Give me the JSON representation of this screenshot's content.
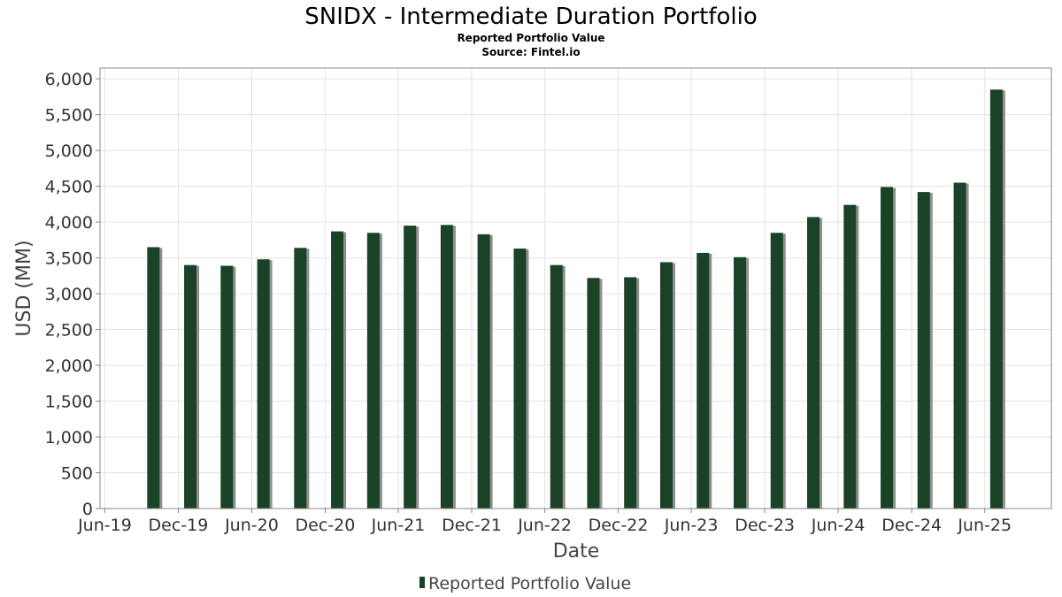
{
  "chart_data": {
    "type": "bar",
    "title": "SNIDX - Intermediate Duration Portfolio",
    "subtitle": "Reported Portfolio Value",
    "source": "Source: Fintel.io",
    "xlabel": "Date",
    "ylabel": "USD (MM)",
    "ylim": [
      0,
      6150
    ],
    "yticks": [
      0,
      500,
      1000,
      1500,
      2000,
      2500,
      3000,
      3500,
      4000,
      4500,
      5000,
      5500,
      6000
    ],
    "ytick_labels": [
      "0",
      "500",
      "1,000",
      "1,500",
      "2,000",
      "2,500",
      "3,000",
      "3,500",
      "4,000",
      "4,500",
      "5,000",
      "5,500",
      "6,000"
    ],
    "xlim": [
      "2019-05-20",
      "2025-11-14"
    ],
    "xticks": [
      {
        "date": "2019-06-01",
        "label": "Jun-19"
      },
      {
        "date": "2019-12-01",
        "label": "Dec-19"
      },
      {
        "date": "2020-06-01",
        "label": "Jun-20"
      },
      {
        "date": "2020-12-01",
        "label": "Dec-20"
      },
      {
        "date": "2021-06-01",
        "label": "Jun-21"
      },
      {
        "date": "2021-12-01",
        "label": "Dec-21"
      },
      {
        "date": "2022-06-01",
        "label": "Jun-22"
      },
      {
        "date": "2022-12-01",
        "label": "Dec-22"
      },
      {
        "date": "2023-06-01",
        "label": "Jun-23"
      },
      {
        "date": "2023-12-01",
        "label": "Dec-23"
      },
      {
        "date": "2024-06-01",
        "label": "Jun-24"
      },
      {
        "date": "2024-12-01",
        "label": "Dec-24"
      },
      {
        "date": "2025-06-01",
        "label": "Jun-25"
      }
    ],
    "grid": true,
    "legend_position": "bottom-center",
    "series": [
      {
        "name": "Reported Portfolio Value",
        "color": "#1a4226",
        "points": [
          {
            "date": "2019-09-30",
            "value": 3650
          },
          {
            "date": "2019-12-31",
            "value": 3400
          },
          {
            "date": "2020-03-31",
            "value": 3390
          },
          {
            "date": "2020-06-30",
            "value": 3480
          },
          {
            "date": "2020-09-30",
            "value": 3640
          },
          {
            "date": "2020-12-31",
            "value": 3870
          },
          {
            "date": "2021-03-31",
            "value": 3850
          },
          {
            "date": "2021-06-30",
            "value": 3950
          },
          {
            "date": "2021-09-30",
            "value": 3960
          },
          {
            "date": "2021-12-31",
            "value": 3830
          },
          {
            "date": "2022-03-31",
            "value": 3630
          },
          {
            "date": "2022-06-30",
            "value": 3400
          },
          {
            "date": "2022-09-30",
            "value": 3220
          },
          {
            "date": "2022-12-31",
            "value": 3230
          },
          {
            "date": "2023-03-31",
            "value": 3440
          },
          {
            "date": "2023-06-30",
            "value": 3570
          },
          {
            "date": "2023-09-30",
            "value": 3510
          },
          {
            "date": "2023-12-31",
            "value": 3850
          },
          {
            "date": "2024-03-31",
            "value": 4070
          },
          {
            "date": "2024-06-30",
            "value": 4240
          },
          {
            "date": "2024-09-30",
            "value": 4490
          },
          {
            "date": "2024-12-31",
            "value": 4420
          },
          {
            "date": "2025-03-31",
            "value": 4550
          },
          {
            "date": "2025-06-30",
            "value": 5850
          }
        ]
      }
    ]
  }
}
